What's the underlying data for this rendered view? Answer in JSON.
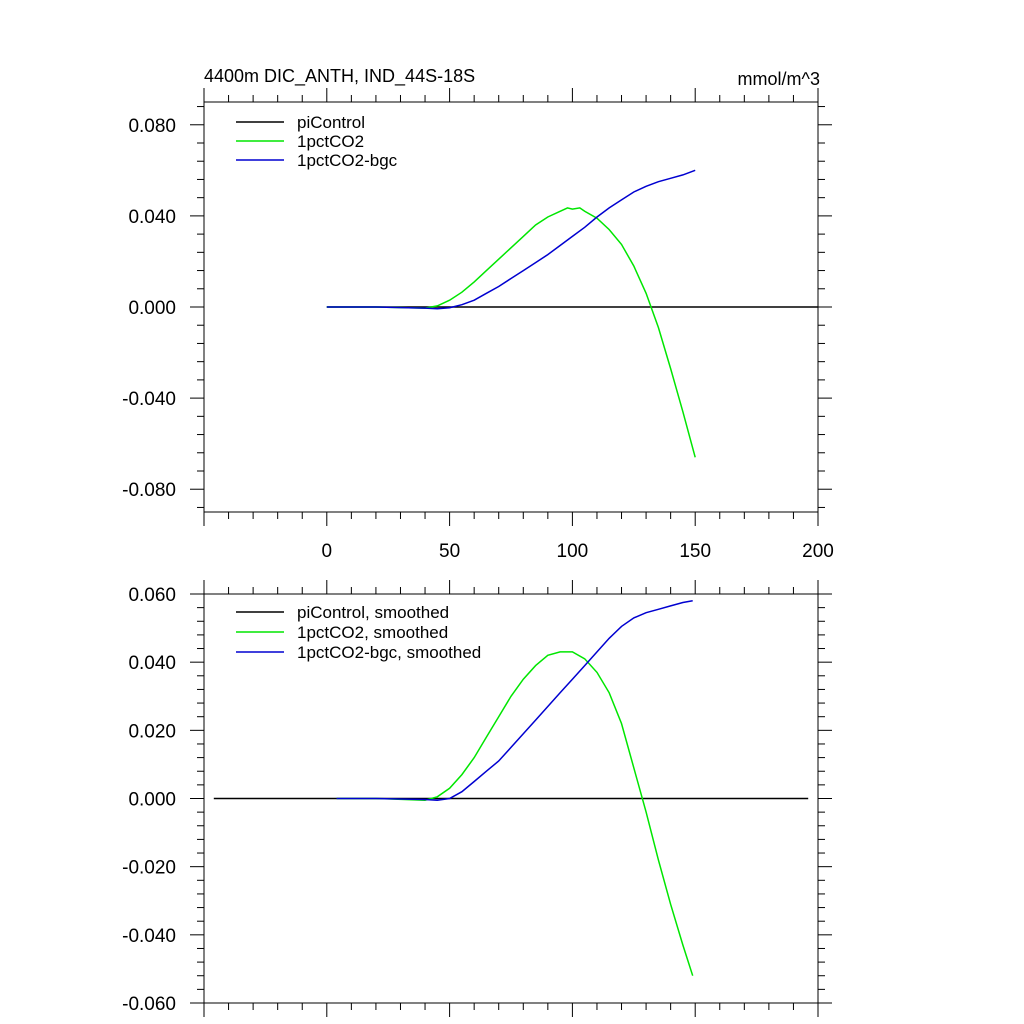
{
  "figure": {
    "title_left": "4400m DIC_ANTH, IND_44S-18S",
    "title_right": "mmol/m^3"
  },
  "chart_data": [
    {
      "type": "line",
      "title": "4400m DIC_ANTH, IND_44S-18S",
      "units": "mmol/m^3",
      "xlim": [
        -50,
        200
      ],
      "ylim": [
        -0.09,
        0.09
      ],
      "x_major_ticks": [
        0,
        50,
        100,
        150,
        200
      ],
      "x_tick_labels": [
        "0",
        "50",
        "100",
        "150",
        "200"
      ],
      "y_major_ticks": [
        -0.08,
        -0.04,
        0.0,
        0.04,
        0.08
      ],
      "y_tick_labels": [
        "-0.080",
        "-0.040",
        "0.000",
        "0.040",
        "0.080"
      ],
      "legend_placement": "top-left",
      "series": [
        {
          "name": "piControl",
          "color": "#000000",
          "x": [
            0,
            200
          ],
          "y": [
            0.0,
            0.0
          ]
        },
        {
          "name": "1pctCO2",
          "color": "#00e600",
          "x": [
            0,
            20,
            40,
            45,
            50,
            55,
            60,
            65,
            70,
            75,
            80,
            85,
            90,
            95,
            98,
            100,
            103,
            105,
            110,
            115,
            120,
            125,
            130,
            135,
            140,
            145,
            150
          ],
          "y": [
            0.0,
            0.0,
            -0.0005,
            0.0005,
            0.003,
            0.0065,
            0.011,
            0.016,
            0.021,
            0.026,
            0.031,
            0.036,
            0.0395,
            0.042,
            0.0435,
            0.043,
            0.0435,
            0.042,
            0.039,
            0.034,
            0.0275,
            0.018,
            0.006,
            -0.009,
            -0.027,
            -0.046,
            -0.066
          ]
        },
        {
          "name": "1pctCO2-bgc",
          "color": "#0000d0",
          "x": [
            0,
            20,
            40,
            45,
            50,
            55,
            60,
            65,
            70,
            75,
            80,
            85,
            90,
            95,
            100,
            105,
            110,
            115,
            120,
            125,
            130,
            135,
            140,
            145,
            150
          ],
          "y": [
            0.0,
            0.0,
            -0.0005,
            -0.0008,
            -0.0003,
            0.001,
            0.003,
            0.006,
            0.009,
            0.0125,
            0.016,
            0.0195,
            0.023,
            0.027,
            0.031,
            0.035,
            0.0395,
            0.0435,
            0.047,
            0.0505,
            0.053,
            0.055,
            0.0565,
            0.058,
            0.06
          ]
        }
      ]
    },
    {
      "type": "line",
      "xlim": [
        -50,
        200
      ],
      "ylim": [
        -0.06,
        0.06
      ],
      "x_major_ticks": [
        0,
        50,
        100,
        150,
        200
      ],
      "y_major_ticks": [
        -0.06,
        -0.04,
        -0.02,
        0.0,
        0.02,
        0.04,
        0.06
      ],
      "y_tick_labels": [
        "-0.060",
        "-0.040",
        "-0.020",
        "0.000",
        "0.020",
        "0.040",
        "0.060"
      ],
      "legend_placement": "top-left",
      "series": [
        {
          "name": "piControl, smoothed",
          "color": "#000000",
          "x": [
            -46,
            196
          ],
          "y": [
            0.0,
            0.0
          ]
        },
        {
          "name": "1pctCO2, smoothed",
          "color": "#00e600",
          "x": [
            4,
            20,
            40,
            45,
            50,
            55,
            60,
            65,
            70,
            75,
            80,
            85,
            90,
            95,
            100,
            105,
            110,
            115,
            120,
            125,
            130,
            135,
            140,
            145,
            149
          ],
          "y": [
            0.0,
            0.0,
            -0.0005,
            0.0005,
            0.003,
            0.007,
            0.012,
            0.018,
            0.024,
            0.03,
            0.035,
            0.039,
            0.042,
            0.043,
            0.043,
            0.041,
            0.037,
            0.031,
            0.022,
            0.009,
            -0.004,
            -0.018,
            -0.031,
            -0.043,
            -0.052
          ]
        },
        {
          "name": "1pctCO2-bgc, smoothed",
          "color": "#0000d0",
          "x": [
            4,
            20,
            40,
            45,
            50,
            55,
            60,
            65,
            70,
            75,
            80,
            85,
            90,
            95,
            100,
            105,
            110,
            115,
            120,
            125,
            130,
            135,
            140,
            145,
            149
          ],
          "y": [
            0.0,
            0.0,
            -0.0003,
            -0.0005,
            0.0,
            0.002,
            0.005,
            0.008,
            0.011,
            0.015,
            0.019,
            0.023,
            0.027,
            0.031,
            0.035,
            0.039,
            0.043,
            0.047,
            0.0505,
            0.053,
            0.0545,
            0.0555,
            0.0565,
            0.0575,
            0.058
          ]
        }
      ]
    }
  ]
}
